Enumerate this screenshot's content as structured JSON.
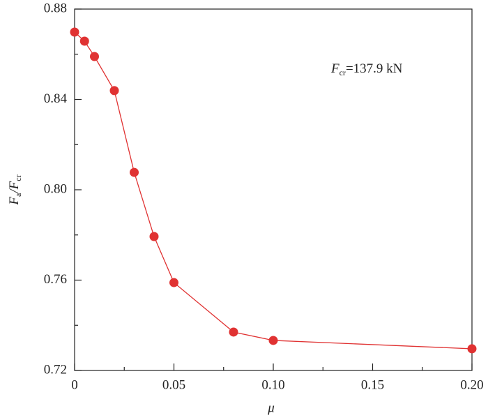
{
  "chart_data": {
    "type": "line",
    "x": [
      0,
      0.005,
      0.01,
      0.02,
      0.03,
      0.04,
      0.05,
      0.08,
      0.1,
      0.2
    ],
    "values": [
      0.8698,
      0.8658,
      0.859,
      0.8439,
      0.8077,
      0.7793,
      0.7589,
      0.737,
      0.7333,
      0.7296
    ],
    "color": "#e03232",
    "xlim": [
      0,
      0.2
    ],
    "ylim": [
      0.72,
      0.88
    ],
    "xticks": [
      0,
      0.05,
      {
        "value": 0.1,
        "label": "0.10"
      },
      0.15,
      {
        "value": 0.2,
        "label": "0.20"
      }
    ],
    "yticks": [
      0.72,
      0.76,
      {
        "value": 0.8,
        "label": "0.80"
      },
      0.84,
      0.88
    ],
    "xlabel": "μ",
    "ylabel": [
      "F",
      "a",
      "/F",
      "cr"
    ],
    "annotation": [
      "F",
      "cr",
      "=137.9 kN"
    ]
  }
}
